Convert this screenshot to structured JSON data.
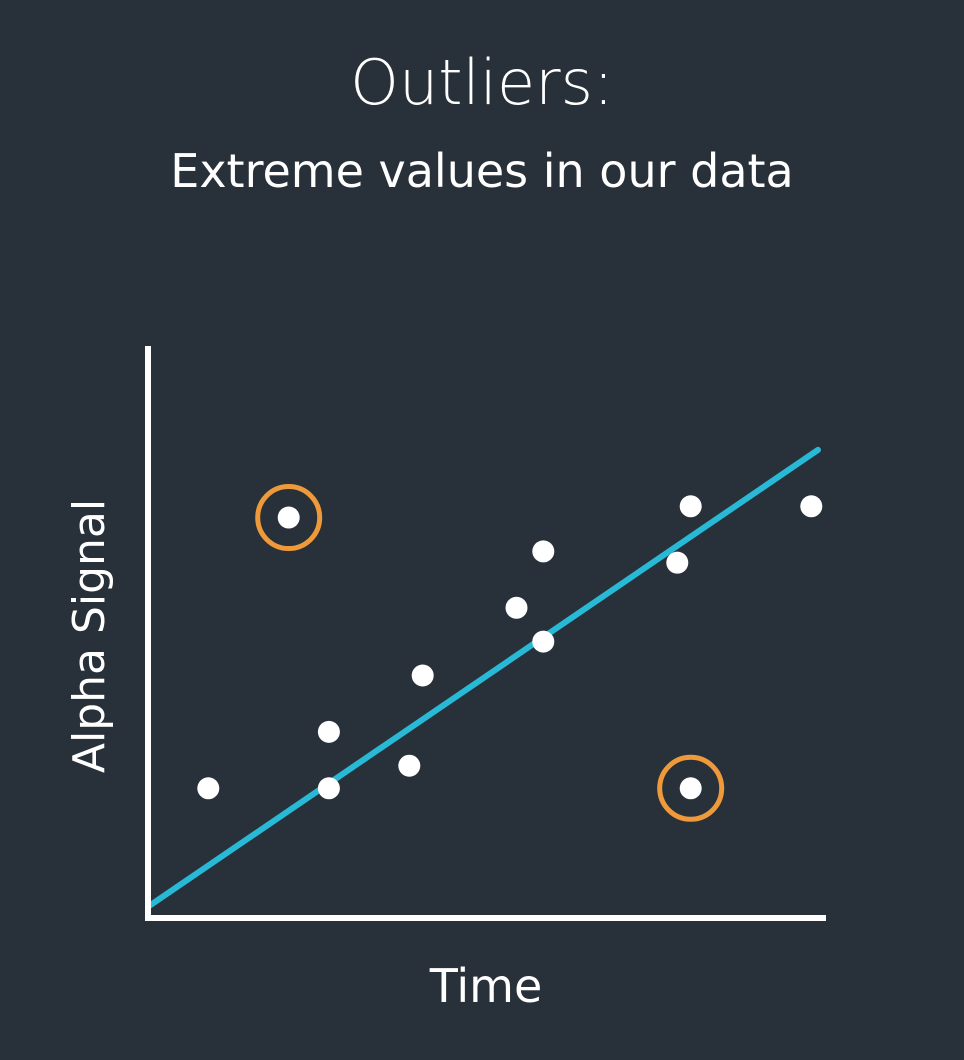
{
  "title": "Outliers:",
  "subtitle": "Extreme values in our data",
  "chart_data": {
    "type": "scatter",
    "xlabel": "Time",
    "ylabel": "Alpha Signal",
    "xlim": [
      0,
      10
    ],
    "ylim": [
      0,
      10
    ],
    "grid": false,
    "points": [
      {
        "x": 0.9,
        "y": 2.3,
        "outlier": false
      },
      {
        "x": 2.7,
        "y": 2.3,
        "outlier": false
      },
      {
        "x": 2.7,
        "y": 3.3,
        "outlier": false
      },
      {
        "x": 3.9,
        "y": 2.7,
        "outlier": false
      },
      {
        "x": 4.1,
        "y": 4.3,
        "outlier": false
      },
      {
        "x": 5.5,
        "y": 5.5,
        "outlier": false
      },
      {
        "x": 5.9,
        "y": 6.5,
        "outlier": false
      },
      {
        "x": 5.9,
        "y": 4.9,
        "outlier": false
      },
      {
        "x": 7.9,
        "y": 6.3,
        "outlier": false
      },
      {
        "x": 8.1,
        "y": 7.3,
        "outlier": false
      },
      {
        "x": 9.9,
        "y": 7.3,
        "outlier": false
      },
      {
        "x": 2.1,
        "y": 7.1,
        "outlier": true
      },
      {
        "x": 8.1,
        "y": 2.3,
        "outlier": true
      }
    ],
    "trendline": {
      "x": [
        0,
        10
      ],
      "y": [
        0.2,
        8.3
      ]
    },
    "colors": {
      "background": "#283039",
      "axis": "#ffffff",
      "points": "#ffffff",
      "trendline": "#27b9d6",
      "outlier_ring": "#ee9a3a"
    }
  }
}
